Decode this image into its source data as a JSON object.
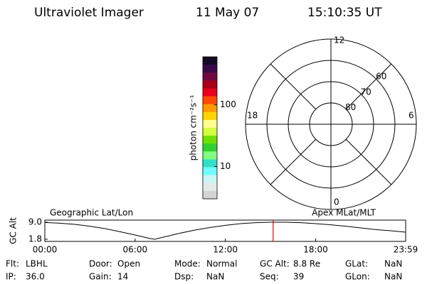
{
  "header": {
    "instrument": "Ultraviolet Imager",
    "date": "11 May 07",
    "time": "15:10:35 UT"
  },
  "colorbar": {
    "label": "photon cm⁻²s⁻¹",
    "log": true,
    "clim": [
      3,
      600
    ],
    "ticks": [
      10,
      100
    ],
    "colors": [
      "#160a24",
      "#3a0a48",
      "#700a40",
      "#a80018",
      "#e8001c",
      "#ff4a00",
      "#ff9a00",
      "#ffd400",
      "#ffff90",
      "#d4ff3c",
      "#6ee000",
      "#30d030",
      "#80ff80",
      "#30e0c8",
      "#70ffff",
      "#c8f4f4",
      "#e4eaea",
      "#d4d4d4"
    ]
  },
  "polar": {
    "rlim": [
      90,
      50
    ],
    "rings": [
      80,
      70,
      60
    ],
    "hour_labels": {
      "top": "12",
      "right": "6",
      "bottom": "0",
      "left": "18"
    }
  },
  "chart_data": {
    "type": "line",
    "ylabel": "GC Alt",
    "left_title": "Geographic Lat/Lon",
    "right_title": "Apex MLat/MLT",
    "x": [
      0,
      1,
      2,
      3,
      4,
      5,
      6,
      7,
      7.3,
      8,
      9,
      10,
      11,
      12,
      13,
      14,
      15,
      16,
      17,
      18,
      19,
      20,
      21,
      22,
      23,
      23.983
    ],
    "values": [
      8.9,
      8.6,
      8.1,
      7.3,
      6.3,
      5.0,
      3.6,
      2.1,
      1.8,
      2.9,
      4.4,
      5.7,
      6.8,
      7.7,
      8.4,
      8.8,
      9.0,
      9.0,
      8.8,
      8.4,
      7.9,
      7.3,
      6.6,
      5.9,
      5.4,
      4.8
    ],
    "color": "#000000",
    "marker_x": 15.175,
    "marker_color": "#e00000",
    "xlim": [
      0,
      23.983
    ],
    "xticks": [
      {
        "value": 0,
        "label": "00:00"
      },
      {
        "value": 6,
        "label": "06:00"
      },
      {
        "value": 12,
        "label": "12:00"
      },
      {
        "value": 18,
        "label": "18:00"
      },
      {
        "value": 23.983,
        "label": "23:59"
      }
    ],
    "ylim": [
      0.9,
      9.9
    ],
    "yticks": [
      {
        "value": 9,
        "label": "9.0"
      },
      1.8
    ]
  },
  "status": [
    [
      {
        "label": "Flt:",
        "value": "LBHL"
      },
      {
        "label": "Door:",
        "value": "Open"
      },
      {
        "label": "Mode:",
        "value": "Normal"
      },
      {
        "label": "GC Alt:",
        "value": "8.8 Re"
      },
      {
        "label": "GLat:",
        "value": "NaN"
      }
    ],
    [
      {
        "label": "IP:",
        "value": "36.0"
      },
      {
        "label": "Gain:",
        "value": "14"
      },
      {
        "label": "Dsp:",
        "value": "NaN"
      },
      {
        "label": "Seq:",
        "value": "39"
      },
      {
        "label": "GLon:",
        "value": "NaN"
      }
    ]
  ]
}
